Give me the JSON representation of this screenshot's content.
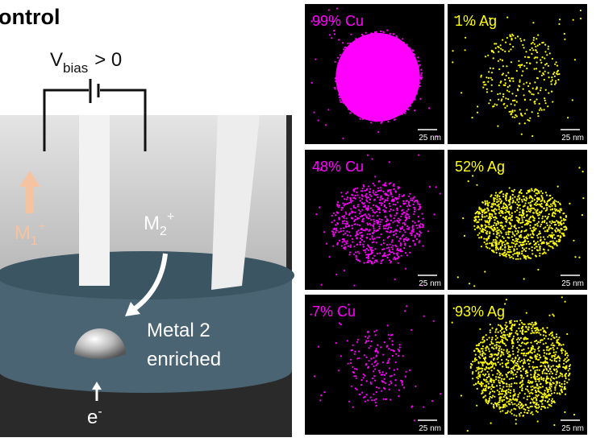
{
  "title": "ontrol",
  "bias": {
    "main": "V",
    "sub": "bias",
    "rest": "> 0"
  },
  "ion1": {
    "main": "M",
    "sub": "1",
    "sup": "+"
  },
  "ion2": {
    "main": "M",
    "sub": "2",
    "sup": "+"
  },
  "annotation": [
    "Metal 2",
    "enriched"
  ],
  "electron": {
    "main": "e",
    "sup": "-"
  },
  "panels": [
    {
      "label": "99% Cu",
      "scale": "25 nm",
      "color": "#ff00ff"
    },
    {
      "label": "1% Ag",
      "scale": "25 nm",
      "color": "#ffff00"
    },
    {
      "label": "48% Cu",
      "scale": "25 nm",
      "color": "#ff00ff"
    },
    {
      "label": "52% Ag",
      "scale": "25 nm",
      "color": "#ffff00"
    },
    {
      "label": "7% Cu",
      "scale": "25 nm",
      "color": "#ff00ff"
    },
    {
      "label": "93% Ag",
      "scale": "25 nm",
      "color": "#ffff00"
    }
  ]
}
